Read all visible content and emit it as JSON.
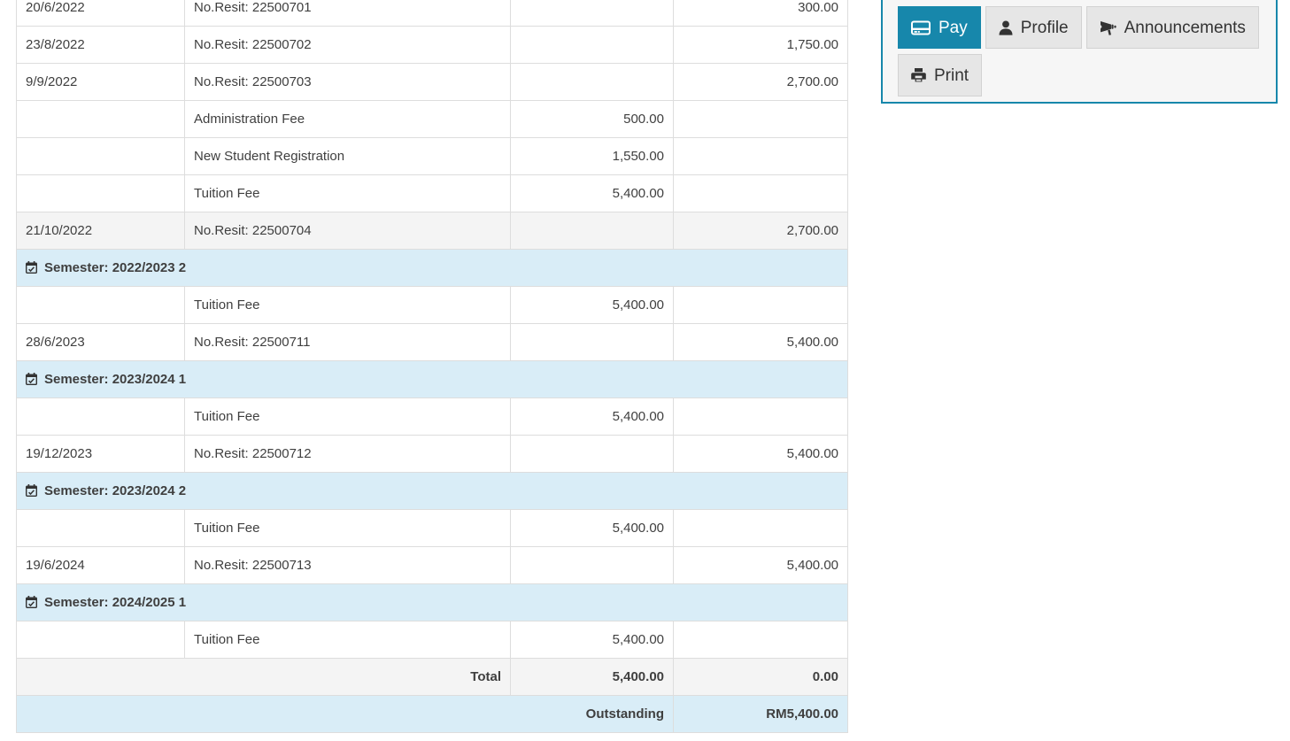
{
  "colors": {
    "accent_teal": "#1787ab",
    "semester_row_bg": "#d9edf7",
    "striped_row_bg": "#f4f4f4",
    "table_border": "#dddddd",
    "text": "#3f3f3f",
    "button_gray_bg": "#e6e6e6",
    "panel_bg": "#f6f6f6"
  },
  "statement_table": {
    "rows": [
      {
        "kind": "entry",
        "date": "20/6/2022",
        "description": "No.Resit: 22500701",
        "charge": "",
        "payment": "300.00",
        "shaded": false
      },
      {
        "kind": "entry",
        "date": "23/8/2022",
        "description": "No.Resit: 22500702",
        "charge": "",
        "payment": "1,750.00",
        "shaded": false
      },
      {
        "kind": "entry",
        "date": "9/9/2022",
        "description": "No.Resit: 22500703",
        "charge": "",
        "payment": "2,700.00",
        "shaded": false
      },
      {
        "kind": "entry",
        "date": "",
        "description": "Administration Fee",
        "charge": "500.00",
        "payment": "",
        "shaded": false
      },
      {
        "kind": "entry",
        "date": "",
        "description": "New Student Registration",
        "charge": "1,550.00",
        "payment": "",
        "shaded": false
      },
      {
        "kind": "entry",
        "date": "",
        "description": "Tuition Fee",
        "charge": "5,400.00",
        "payment": "",
        "shaded": false
      },
      {
        "kind": "entry",
        "date": "21/10/2022",
        "description": "No.Resit: 22500704",
        "charge": "",
        "payment": "2,700.00",
        "shaded": true
      },
      {
        "kind": "semester",
        "label": "Semester: 2022/2023 2",
        "icon": "calendar-check-icon"
      },
      {
        "kind": "entry",
        "date": "",
        "description": "Tuition Fee",
        "charge": "5,400.00",
        "payment": "",
        "shaded": false
      },
      {
        "kind": "entry",
        "date": "28/6/2023",
        "description": "No.Resit: 22500711",
        "charge": "",
        "payment": "5,400.00",
        "shaded": false
      },
      {
        "kind": "semester",
        "label": "Semester: 2023/2024 1",
        "icon": "calendar-check-icon"
      },
      {
        "kind": "entry",
        "date": "",
        "description": "Tuition Fee",
        "charge": "5,400.00",
        "payment": "",
        "shaded": false
      },
      {
        "kind": "entry",
        "date": "19/12/2023",
        "description": "No.Resit: 22500712",
        "charge": "",
        "payment": "5,400.00",
        "shaded": false
      },
      {
        "kind": "semester",
        "label": "Semester: 2023/2024 2",
        "icon": "calendar-check-icon"
      },
      {
        "kind": "entry",
        "date": "",
        "description": "Tuition Fee",
        "charge": "5,400.00",
        "payment": "",
        "shaded": false
      },
      {
        "kind": "entry",
        "date": "19/6/2024",
        "description": "No.Resit: 22500713",
        "charge": "",
        "payment": "5,400.00",
        "shaded": false
      },
      {
        "kind": "semester",
        "label": "Semester: 2024/2025 1",
        "icon": "calendar-check-icon"
      },
      {
        "kind": "entry",
        "date": "",
        "description": "Tuition Fee",
        "charge": "5,400.00",
        "payment": "",
        "shaded": false
      },
      {
        "kind": "total",
        "label": "Total",
        "charge": "5,400.00",
        "payment": "0.00"
      },
      {
        "kind": "outstanding",
        "label": "Outstanding",
        "amount": "RM5,400.00"
      }
    ]
  },
  "actions_panel": {
    "buttons": [
      {
        "label": "Pay",
        "icon": "credit-card-icon",
        "active": true
      },
      {
        "label": "Profile",
        "icon": "user-icon",
        "active": false
      },
      {
        "label": "Announcements",
        "icon": "bullhorn-icon",
        "active": false
      },
      {
        "label": "Print",
        "icon": "print-icon",
        "active": false
      }
    ]
  }
}
